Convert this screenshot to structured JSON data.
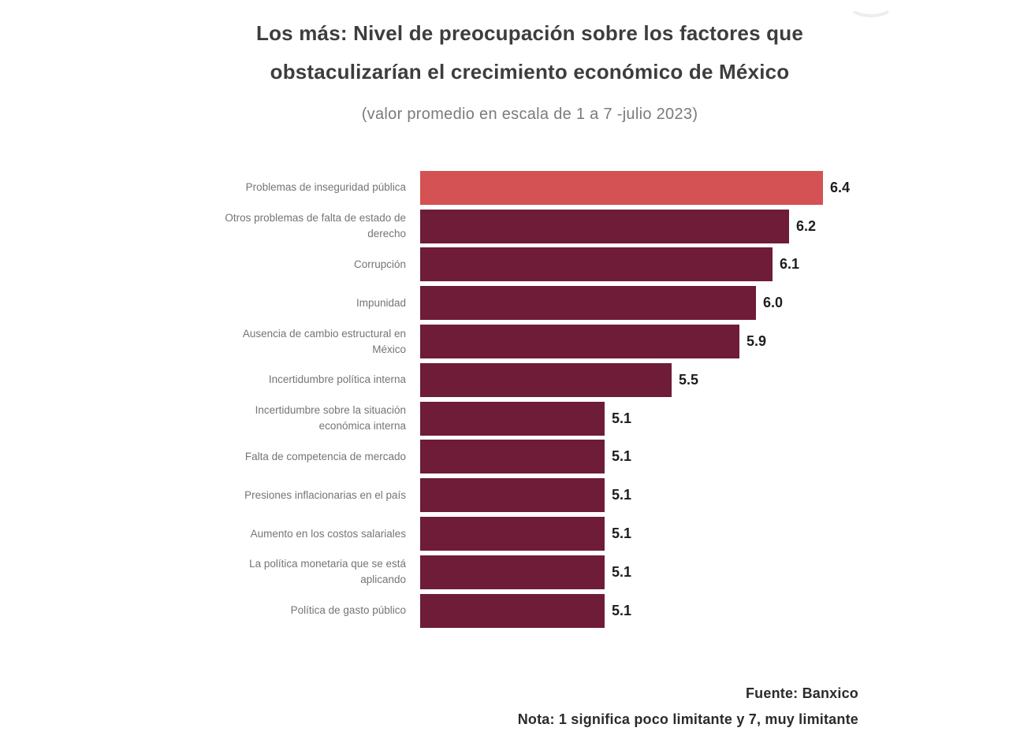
{
  "header": {
    "title_line1": "Los más: Nivel de preocupación sobre los factores que",
    "title_line2": "obstaculizarían el crecimiento económico de México",
    "subtitle": "(valor promedio en escala de 1 a 7 -julio 2023)"
  },
  "footer": {
    "source": "Fuente: Banxico",
    "note": "Nota: 1 significa poco limitante y 7, muy limitante"
  },
  "chart_data": {
    "type": "bar",
    "orientation": "horizontal",
    "title": "Los más: Nivel de preocupación sobre los factores que obstaculizarían el crecimiento económico de México",
    "subtitle": "(valor promedio en escala de 1 a 7 -julio 2023)",
    "categories": [
      "Problemas de inseguridad pública",
      "Otros problemas de falta de estado de derecho",
      "Corrupción",
      "Impunidad",
      "Ausencia de cambio estructural en México",
      "Incertidumbre política interna",
      "Incertidumbre sobre la situación económica interna",
      "Falta de competencia de mercado",
      "Presiones inflacionarias en el país",
      "Aumento en los costos salariales",
      "La política monetaria que se está aplicando",
      "Política de gasto público"
    ],
    "values": [
      6.4,
      6.2,
      6.1,
      6.0,
      5.9,
      5.5,
      5.1,
      5.1,
      5.1,
      5.1,
      5.1,
      5.1
    ],
    "value_labels": [
      "6.4",
      "6.2",
      "6.1",
      "6.0",
      "5.9",
      "5.5",
      "5.1",
      "5.1",
      "5.1",
      "5.1",
      "5.1",
      "5.1"
    ],
    "xlim": [
      4.0,
      6.4
    ],
    "grid": false,
    "legend": false,
    "highlight_index": 0,
    "colors": {
      "highlight_bar": "#d45154",
      "bar": "#6e1c37",
      "value_label": "#1d1d1d",
      "category_label": "#757575",
      "title": "#3d3d3d",
      "subtitle": "#7b7b7b",
      "footer": "#2b2b2b"
    },
    "source": "Fuente: Banxico",
    "note": "Nota: 1 significa poco limitante y 7, muy limitante"
  }
}
